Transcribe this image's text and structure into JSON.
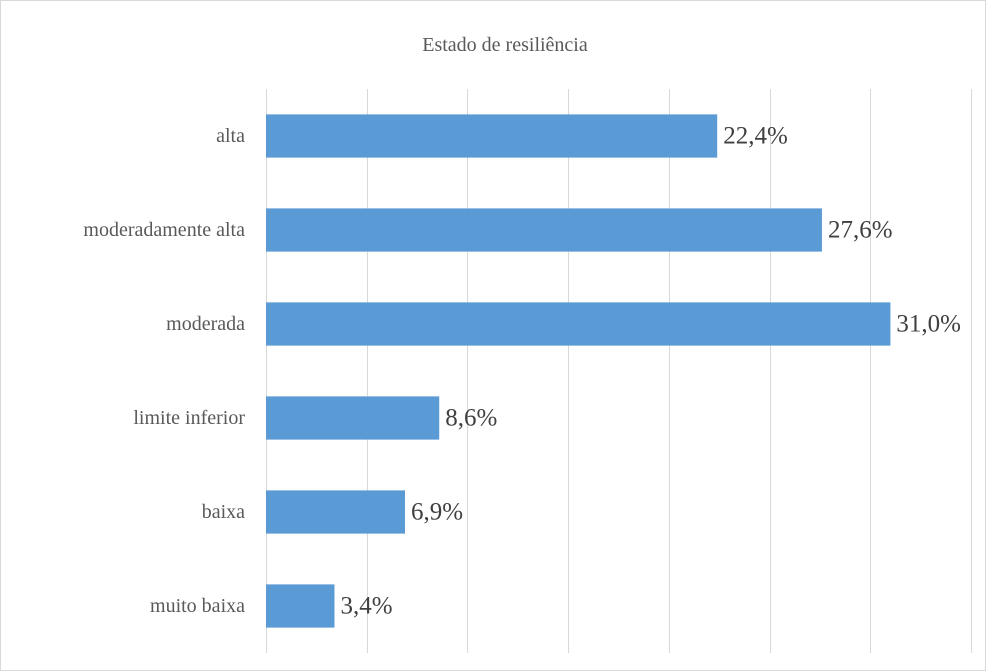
{
  "chart_data": {
    "type": "bar",
    "orientation": "horizontal",
    "title": "Estado de resiliência",
    "categories": [
      "alta",
      "moderadamente alta",
      "moderada",
      "limite inferior",
      "baixa",
      "muito baixa"
    ],
    "values": [
      22.4,
      27.6,
      31.0,
      8.6,
      6.9,
      3.4
    ],
    "data_labels": [
      "22,4%",
      "27,6%",
      "31,0%",
      "8,6%",
      "6,9%",
      "3,4%"
    ],
    "xlim": [
      0,
      35
    ],
    "grid": true,
    "legend": "none",
    "bar_color": "#5b9bd5"
  }
}
